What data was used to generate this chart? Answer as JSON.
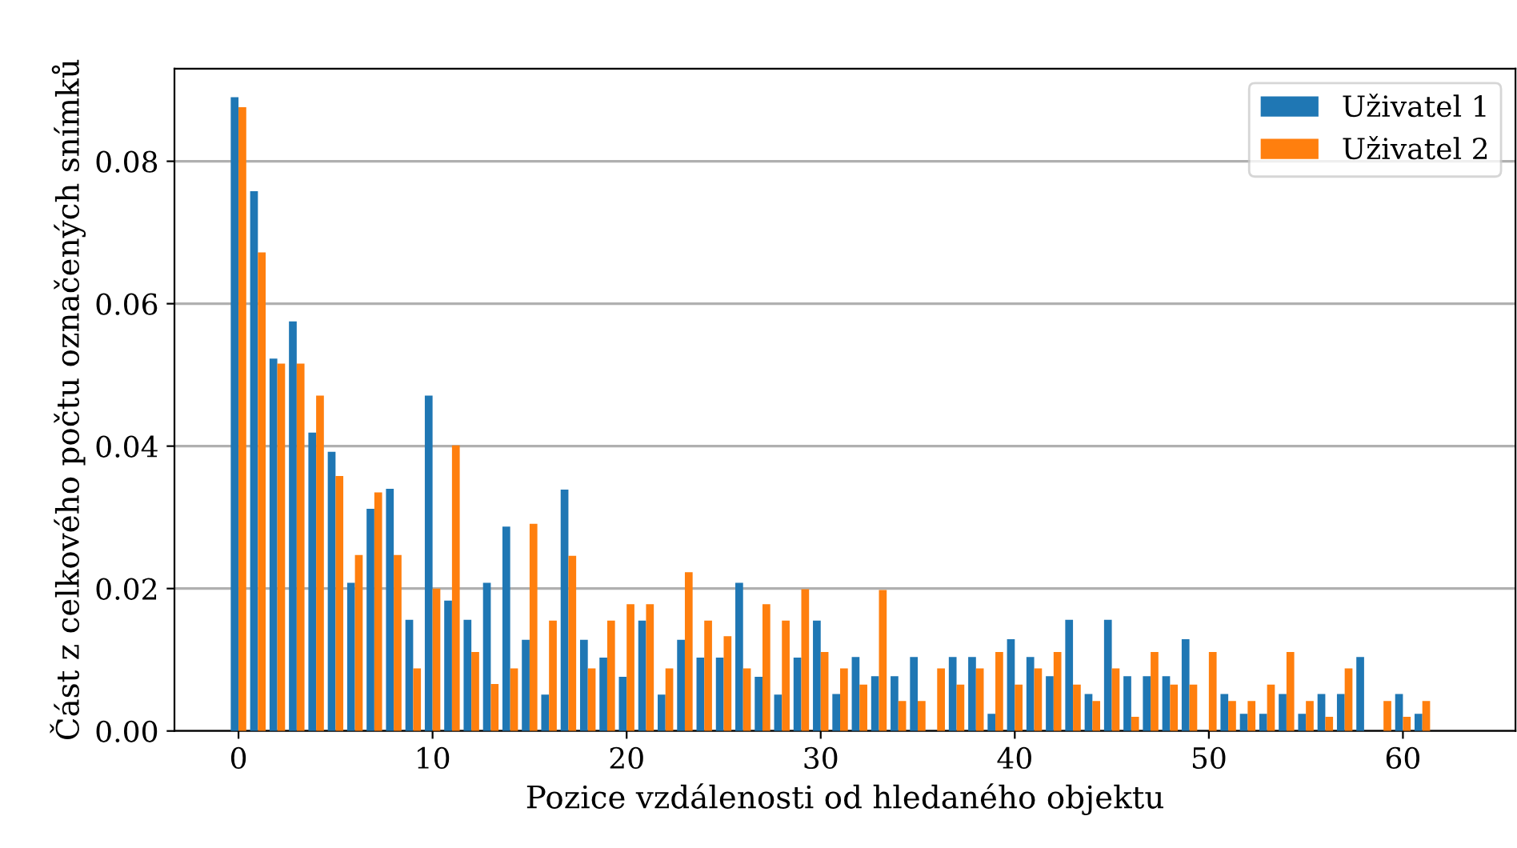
{
  "chart_data": {
    "type": "bar",
    "xlabel": "Pozice vzdálenosti od hledaného objektu",
    "ylabel": "Část z celkového počtu označených snímků",
    "x": [
      0,
      1,
      2,
      3,
      4,
      5,
      6,
      7,
      8,
      9,
      10,
      11,
      12,
      13,
      14,
      15,
      16,
      17,
      18,
      19,
      20,
      21,
      22,
      23,
      24,
      25,
      26,
      27,
      28,
      29,
      30,
      31,
      32,
      33,
      34,
      35,
      36,
      37,
      38,
      39,
      40,
      41,
      42,
      43,
      44,
      45,
      46,
      47,
      48,
      49,
      50,
      51,
      52,
      53,
      54,
      55,
      56,
      57,
      58,
      59,
      60,
      61
    ],
    "series": [
      {
        "name": "Uživatel 1",
        "color": "#1f77b4",
        "values": [
          0.089,
          0.0758,
          0.0523,
          0.0575,
          0.0419,
          0.0392,
          0.0208,
          0.0312,
          0.034,
          0.0156,
          0.0471,
          0.0183,
          0.0156,
          0.0208,
          0.0287,
          0.0128,
          0.0051,
          0.0339,
          0.0128,
          0.0103,
          0.0076,
          0.0155,
          0.0051,
          0.0128,
          0.0103,
          0.0103,
          0.0208,
          0.0076,
          0.0051,
          0.0103,
          0.0155,
          0.0052,
          0.0104,
          0.0077,
          0.0077,
          0.0104,
          0,
          0.0104,
          0.0104,
          0.0024,
          0.0129,
          0.0104,
          0.0077,
          0.0156,
          0.0052,
          0.0156,
          0.0077,
          0.0077,
          0.0077,
          0.0129,
          0,
          0.0052,
          0.0024,
          0.0024,
          0.0052,
          0.0024,
          0.0052,
          0.0052,
          0.0104,
          0,
          0.0052,
          0.0024
        ]
      },
      {
        "name": "Uživatel 2",
        "color": "#ff7f0e",
        "values": [
          0.0876,
          0.0672,
          0.0516,
          0.0516,
          0.0471,
          0.0358,
          0.0247,
          0.0335,
          0.0247,
          0.0088,
          0.02,
          0.0401,
          0.0111,
          0.0066,
          0.0088,
          0.0291,
          0.0155,
          0.0246,
          0.0088,
          0.0155,
          0.0178,
          0.0178,
          0.0088,
          0.0223,
          0.0155,
          0.0133,
          0.0088,
          0.0178,
          0.0155,
          0.0199,
          0.0111,
          0.0088,
          0.0065,
          0.0198,
          0.0042,
          0.0042,
          0.0088,
          0.0065,
          0.0088,
          0.0111,
          0.0065,
          0.0088,
          0.0111,
          0.0065,
          0.0042,
          0.0088,
          0.002,
          0.0111,
          0.0065,
          0.0065,
          0.0111,
          0.0042,
          0.0042,
          0.0065,
          0.0111,
          0.0042,
          0.002,
          0.0088,
          0,
          0.0042,
          0.002,
          0.0042
        ]
      }
    ],
    "xlim": [
      -3.3,
      65.8
    ],
    "xticks": [
      0,
      10,
      20,
      30,
      40,
      50,
      60
    ],
    "ylim": [
      0,
      0.093
    ],
    "yticks": [
      {
        "value": 0,
        "label": "0.00"
      },
      {
        "value": 0.02,
        "label": "0.02"
      },
      {
        "value": 0.04,
        "label": "0.04"
      },
      {
        "value": 0.06,
        "label": "0.06"
      },
      {
        "value": 0.08,
        "label": "0.08"
      }
    ],
    "grid": "y",
    "legend": "top right"
  }
}
